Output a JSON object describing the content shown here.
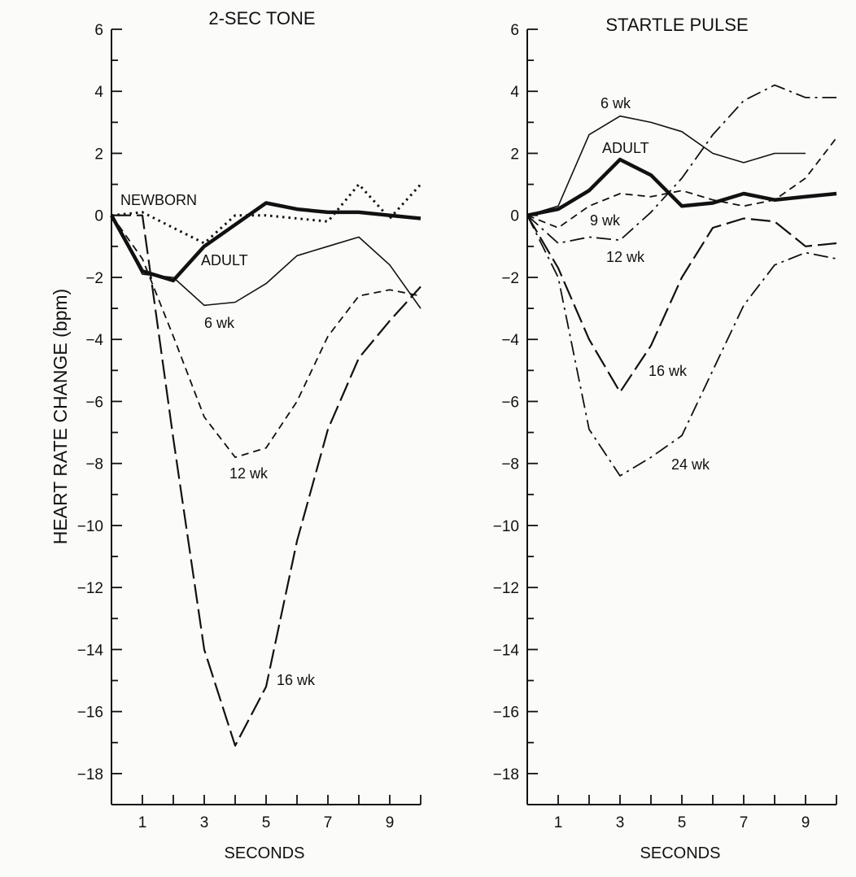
{
  "chart_data": [
    {
      "type": "line",
      "title": "2-SEC TONE",
      "xlabel": "SECONDS",
      "ylabel": "HEART RATE CHANGE (bpm)",
      "xlim": [
        0,
        10
      ],
      "ylim": [
        -19,
        6
      ],
      "xticks": [
        1,
        3,
        5,
        7,
        9
      ],
      "yticks": [
        6,
        4,
        2,
        0,
        -2,
        -4,
        -6,
        -8,
        -10,
        -12,
        -14,
        -16,
        -18
      ],
      "grid": false,
      "series": [
        {
          "name": "NEWBORN",
          "style": "dotted",
          "x": [
            0,
            1,
            2,
            3,
            4,
            5,
            6,
            7,
            8,
            9,
            10
          ],
          "y": [
            0,
            0.1,
            -0.4,
            -0.9,
            0,
            0,
            -0.1,
            -0.2,
            1.0,
            -0.1,
            1.0
          ]
        },
        {
          "name": "ADULT",
          "style": "thick-solid",
          "x": [
            0,
            1,
            2,
            3,
            4,
            5,
            6,
            7,
            8,
            9,
            10
          ],
          "y": [
            0,
            -1.8,
            -2.1,
            -1.0,
            -0.3,
            0.4,
            0.2,
            0.1,
            0.1,
            0.0,
            -0.1
          ]
        },
        {
          "name": "6 wk",
          "style": "solid",
          "x": [
            0,
            1,
            2,
            3,
            4,
            5,
            6,
            7,
            8,
            9,
            10
          ],
          "y": [
            0,
            -1.9,
            -2.0,
            -2.9,
            -2.8,
            -2.2,
            -1.3,
            -1.0,
            -0.7,
            -1.6,
            -3.0
          ]
        },
        {
          "name": "12 wk",
          "style": "short-dash",
          "x": [
            0,
            1,
            2,
            3,
            4,
            5,
            6,
            7,
            8,
            9,
            10
          ],
          "y": [
            0,
            -1.4,
            -3.9,
            -6.5,
            -7.8,
            -7.5,
            -6.0,
            -3.9,
            -2.6,
            -2.4,
            -2.6
          ]
        },
        {
          "name": "16 wk",
          "style": "long-dash",
          "x": [
            0,
            1,
            2,
            3,
            4,
            5,
            6,
            7,
            8,
            9,
            10
          ],
          "y": [
            0,
            0,
            -7.2,
            -14.0,
            -17.1,
            -15.2,
            -10.5,
            -6.9,
            -4.6,
            -3.4,
            -2.3
          ]
        }
      ],
      "labels": [
        "NEWBORN",
        "ADULT",
        "6 wk",
        "12 wk",
        "16 wk"
      ]
    },
    {
      "type": "line",
      "title": "STARTLE PULSE",
      "xlabel": "SECONDS",
      "ylabel": "",
      "xlim": [
        0,
        10
      ],
      "ylim": [
        -19,
        6
      ],
      "xticks": [
        1,
        3,
        5,
        7,
        9
      ],
      "yticks": [
        6,
        4,
        2,
        0,
        -2,
        -4,
        -6,
        -8,
        -10,
        -12,
        -14,
        -16,
        -18
      ],
      "grid": false,
      "series": [
        {
          "name": "6 wk",
          "style": "solid",
          "x": [
            0,
            1,
            2,
            3,
            4,
            5,
            6,
            7,
            8,
            9
          ],
          "y": [
            0,
            0.3,
            2.6,
            3.2,
            3.0,
            2.7,
            2.0,
            1.7,
            2.0,
            2.0
          ]
        },
        {
          "name": "ADULT",
          "style": "thick-solid",
          "x": [
            0,
            1,
            2,
            3,
            4,
            5,
            6,
            7,
            8,
            9,
            10
          ],
          "y": [
            0,
            0.2,
            0.8,
            1.8,
            1.3,
            0.3,
            0.4,
            0.7,
            0.5,
            0.6,
            0.7
          ]
        },
        {
          "name": "9 wk",
          "style": "short-dash",
          "x": [
            0,
            1,
            2,
            3,
            4,
            5,
            6,
            7,
            8,
            9,
            10
          ],
          "y": [
            0,
            -0.4,
            0.3,
            0.7,
            0.6,
            0.8,
            0.5,
            0.3,
            0.5,
            1.2,
            2.5
          ]
        },
        {
          "name": "12 wk",
          "style": "dash-dot",
          "x": [
            0,
            1,
            2,
            3,
            4,
            5,
            6,
            7,
            8,
            9,
            10
          ],
          "y": [
            0,
            -0.9,
            -0.7,
            -0.8,
            0.1,
            1.2,
            2.6,
            3.7,
            4.2,
            3.8,
            3.8
          ]
        },
        {
          "name": "16 wk",
          "style": "long-dash",
          "x": [
            0,
            1,
            2,
            3,
            4,
            5,
            6,
            7,
            8,
            9,
            10
          ],
          "y": [
            0,
            -1.7,
            -4.0,
            -5.7,
            -4.2,
            -2.0,
            -0.4,
            -0.1,
            -0.2,
            -1.0,
            -0.9
          ]
        },
        {
          "name": "24 wk",
          "style": "dash-dot",
          "x": [
            0,
            1,
            2,
            3,
            4,
            5,
            6,
            7,
            8,
            9,
            10
          ],
          "y": [
            0,
            -2.0,
            -6.9,
            -8.4,
            -7.8,
            -7.1,
            -5.0,
            -2.9,
            -1.6,
            -1.2,
            -1.4
          ]
        }
      ],
      "labels": [
        "6 wk",
        "ADULT",
        "9 wk",
        "12 wk",
        "16 wk",
        "24 wk"
      ]
    }
  ]
}
